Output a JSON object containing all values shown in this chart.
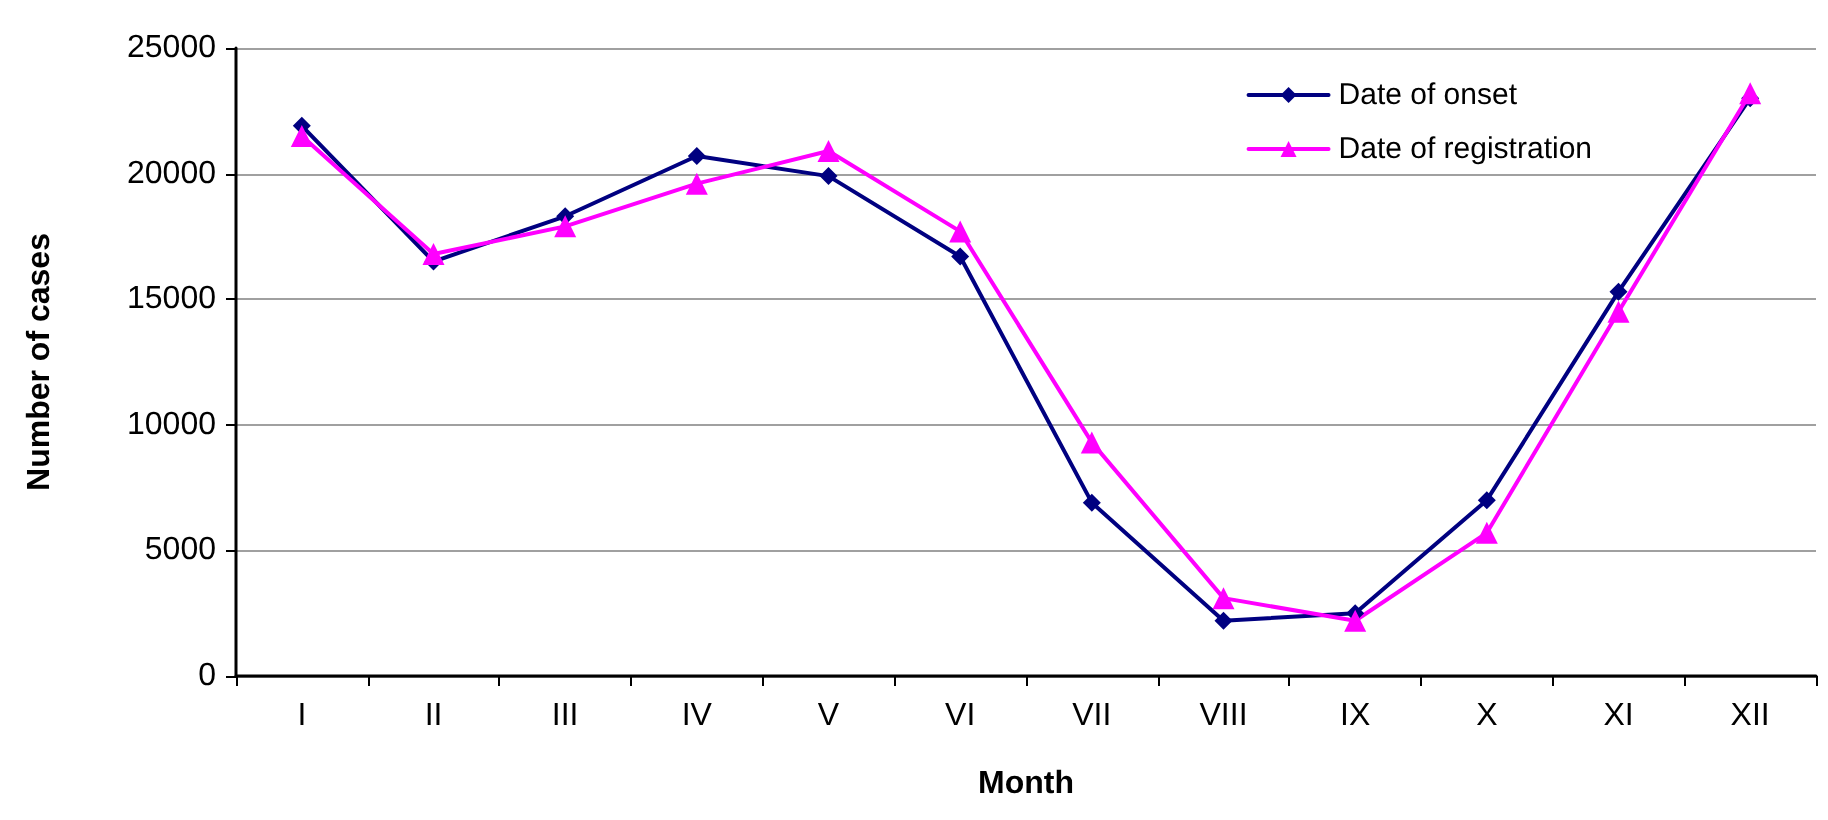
{
  "chart_data": {
    "type": "line",
    "xlabel": "Month",
    "ylabel": "Number of cases",
    "categories": [
      "I",
      "II",
      "III",
      "IV",
      "V",
      "VI",
      "VII",
      "VIII",
      "IX",
      "X",
      "XI",
      "XII"
    ],
    "series": [
      {
        "name": "Date of onset",
        "color": "#000080",
        "marker": "diamond",
        "values": [
          21900,
          16500,
          18300,
          20700,
          19900,
          16700,
          6900,
          2200,
          2500,
          7000,
          15300,
          23000
        ]
      },
      {
        "name": "Date of registration",
        "color": "#ff00ff",
        "marker": "triangle",
        "values": [
          21500,
          16800,
          17900,
          19600,
          20900,
          17700,
          9300,
          3100,
          2200,
          5700,
          14500,
          23200
        ]
      }
    ],
    "ylim": [
      0,
      25000
    ],
    "yticks": [
      0,
      5000,
      10000,
      15000,
      20000,
      25000
    ],
    "grid": "y",
    "legend": "top right",
    "line_style": "solid"
  }
}
